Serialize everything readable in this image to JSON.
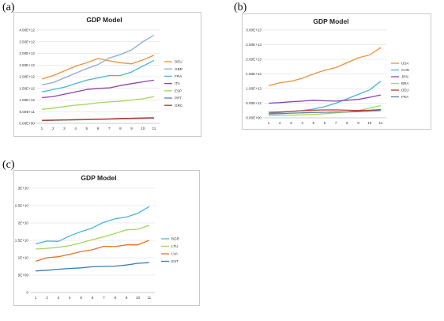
{
  "panel_labels": [
    "(a)",
    "(b)",
    "(c)"
  ],
  "chart_data": [
    {
      "type": "line",
      "title": "GDP Model",
      "xlabel": "",
      "ylabel": "",
      "categories": [
        "1",
        "2",
        "3",
        "4",
        "5",
        "6",
        "7",
        "8",
        "9",
        "10",
        "11"
      ],
      "ylim": [
        0,
        4000000000000.0
      ],
      "ytick_labels": [
        "0.00E+00",
        "5.00E+11",
        "1.00E+12",
        "1.50E+12",
        "2.00E+12",
        "2.50E+12",
        "3.00E+12",
        "3.50E+12",
        "4.00E+12"
      ],
      "grid": true,
      "legend": "right",
      "series": [
        {
          "name": "DEU",
          "color": "#f0913a",
          "values": [
            1900000000000.0,
            2050000000000.0,
            2250000000000.0,
            2450000000000.0,
            2600000000000.0,
            2780000000000.0,
            2680000000000.0,
            2600000000000.0,
            2550000000000.0,
            2720000000000.0,
            2920000000000.0
          ]
        },
        {
          "name": "GBR",
          "color": "#8ea9db",
          "values": [
            1650000000000.0,
            1750000000000.0,
            1950000000000.0,
            2150000000000.0,
            2350000000000.0,
            2520000000000.0,
            2800000000000.0,
            2950000000000.0,
            3150000000000.0,
            3500000000000.0,
            3780000000000.0
          ]
        },
        {
          "name": "FRA",
          "color": "#4ab3d9",
          "values": [
            1350000000000.0,
            1450000000000.0,
            1550000000000.0,
            1700000000000.0,
            1850000000000.0,
            1950000000000.0,
            2050000000000.0,
            2050000000000.0,
            2200000000000.0,
            2450000000000.0,
            2700000000000.0
          ]
        },
        {
          "name": "ITA",
          "color": "#8e44ad",
          "values": [
            1100000000000.0,
            1150000000000.0,
            1250000000000.0,
            1350000000000.0,
            1450000000000.0,
            1500000000000.0,
            1520000000000.0,
            1620000000000.0,
            1700000000000.0,
            1780000000000.0,
            1850000000000.0
          ]
        },
        {
          "name": "ESP",
          "color": "#a4d65e",
          "values": [
            600000000000.0,
            650000000000.0,
            720000000000.0,
            780000000000.0,
            820000000000.0,
            880000000000.0,
            920000000000.0,
            950000000000.0,
            1000000000000.0,
            1050000000000.0,
            1150000000000.0
          ]
        },
        {
          "name": "PRT",
          "color": "#5b7fa6",
          "values": [
            120000000000.0,
            130000000000.0,
            140000000000.0,
            150000000000.0,
            160000000000.0,
            170000000000.0,
            180000000000.0,
            190000000000.0,
            200000000000.0,
            210000000000.0,
            220000000000.0
          ]
        },
        {
          "name": "GRC",
          "color": "#c0392b",
          "values": [
            130000000000.0,
            140000000000.0,
            150000000000.0,
            160000000000.0,
            170000000000.0,
            180000000000.0,
            190000000000.0,
            210000000000.0,
            220000000000.0,
            230000000000.0,
            240000000000.0
          ]
        }
      ]
    },
    {
      "type": "line",
      "title": "GDP Model",
      "xlabel": "",
      "ylabel": "",
      "categories": [
        "1",
        "2",
        "3",
        "4",
        "5",
        "6",
        "7",
        "8",
        "9",
        "10",
        "11"
      ],
      "ylim": [
        0,
        30000000000000.0
      ],
      "ytick_labels": [
        "0.00E+00",
        "5.00E+12",
        "1.00E+13",
        "1.50E+13",
        "2.00E+13",
        "2.50E+13",
        "3.00E+13"
      ],
      "grid": true,
      "legend": "right",
      "series": [
        {
          "name": "USA",
          "color": "#f0913a",
          "values": [
            11000000000000.0,
            12000000000000.0,
            12500000000000.0,
            13500000000000.0,
            15000000000000.0,
            16300000000000.0,
            17200000000000.0,
            18800000000000.0,
            20500000000000.0,
            21500000000000.0,
            24000000000000.0
          ]
        },
        {
          "name": "CHN",
          "color": "#4ab3d9",
          "values": [
            1500000000000.0,
            1800000000000.0,
            2200000000000.0,
            2500000000000.0,
            3000000000000.0,
            3800000000000.0,
            5000000000000.0,
            6500000000000.0,
            8000000000000.0,
            9500000000000.0,
            12500000000000.0
          ]
        },
        {
          "name": "JPN",
          "color": "#8e44ad",
          "values": [
            5000000000000.0,
            5200000000000.0,
            5500000000000.0,
            5700000000000.0,
            6000000000000.0,
            5800000000000.0,
            5700000000000.0,
            6000000000000.0,
            6300000000000.0,
            7000000000000.0,
            7800000000000.0
          ]
        },
        {
          "name": "BRA",
          "color": "#a4d65e",
          "values": [
            700000000000.0,
            800000000000.0,
            900000000000.0,
            1000000000000.0,
            1200000000000.0,
            1400000000000.0,
            1700000000000.0,
            2000000000000.0,
            2500000000000.0,
            3300000000000.0,
            4200000000000.0
          ]
        },
        {
          "name": "DEU",
          "color": "#c0392b",
          "values": [
            1900000000000.0,
            2000000000000.0,
            2200000000000.0,
            2400000000000.0,
            2600000000000.0,
            2700000000000.0,
            2700000000000.0,
            2600000000000.0,
            2500000000000.0,
            2600000000000.0,
            2800000000000.0
          ]
        },
        {
          "name": "FRA",
          "color": "#5b7fa6",
          "values": [
            1300000000000.0,
            1400000000000.0,
            1600000000000.0,
            1700000000000.0,
            1800000000000.0,
            1900000000000.0,
            2000000000000.0,
            2000000000000.0,
            2100000000000.0,
            2300000000000.0,
            2500000000000.0
          ]
        }
      ]
    },
    {
      "type": "line",
      "title": "GDP Model",
      "xlabel": "",
      "ylabel": "",
      "categories": [
        "1",
        "2",
        "3",
        "4",
        "5",
        "6",
        "7",
        "8",
        "9",
        "10",
        "11"
      ],
      "ylim": [
        0,
        30000000000.0
      ],
      "ytick_labels": [
        "0",
        "5E+09",
        "1E+10",
        "1.5E+10",
        "2E+10",
        "2.5E+10",
        "3E+10"
      ],
      "grid": true,
      "legend": "right",
      "series": [
        {
          "name": "BGR",
          "color": "#4ab3d9",
          "values": [
            14000000000.0,
            14800000000.0,
            14700000000.0,
            16300000000.0,
            17500000000.0,
            18600000000.0,
            20200000000.0,
            21200000000.0,
            21700000000.0,
            22800000000.0,
            24700000000.0
          ]
        },
        {
          "name": "LTU",
          "color": "#a4d65e",
          "values": [
            12500000000.0,
            12700000000.0,
            13000000000.0,
            13500000000.0,
            14300000000.0,
            15200000000.0,
            16000000000.0,
            17000000000.0,
            18000000000.0,
            18200000000.0,
            19300000000.0
          ]
        },
        {
          "name": "LVA",
          "color": "#e8702a",
          "values": [
            9000000000.0,
            10000000000.0,
            10300000000.0,
            11000000000.0,
            11800000000.0,
            12300000000.0,
            13300000000.0,
            13200000000.0,
            13700000000.0,
            13700000000.0,
            15000000000.0
          ]
        },
        {
          "name": "EST",
          "color": "#3b7bb8",
          "values": [
            6200000000.0,
            6400000000.0,
            6700000000.0,
            6900000000.0,
            7100000000.0,
            7400000000.0,
            7500000000.0,
            7600000000.0,
            7900000000.0,
            8400000000.0,
            8600000000.0
          ]
        }
      ]
    }
  ]
}
